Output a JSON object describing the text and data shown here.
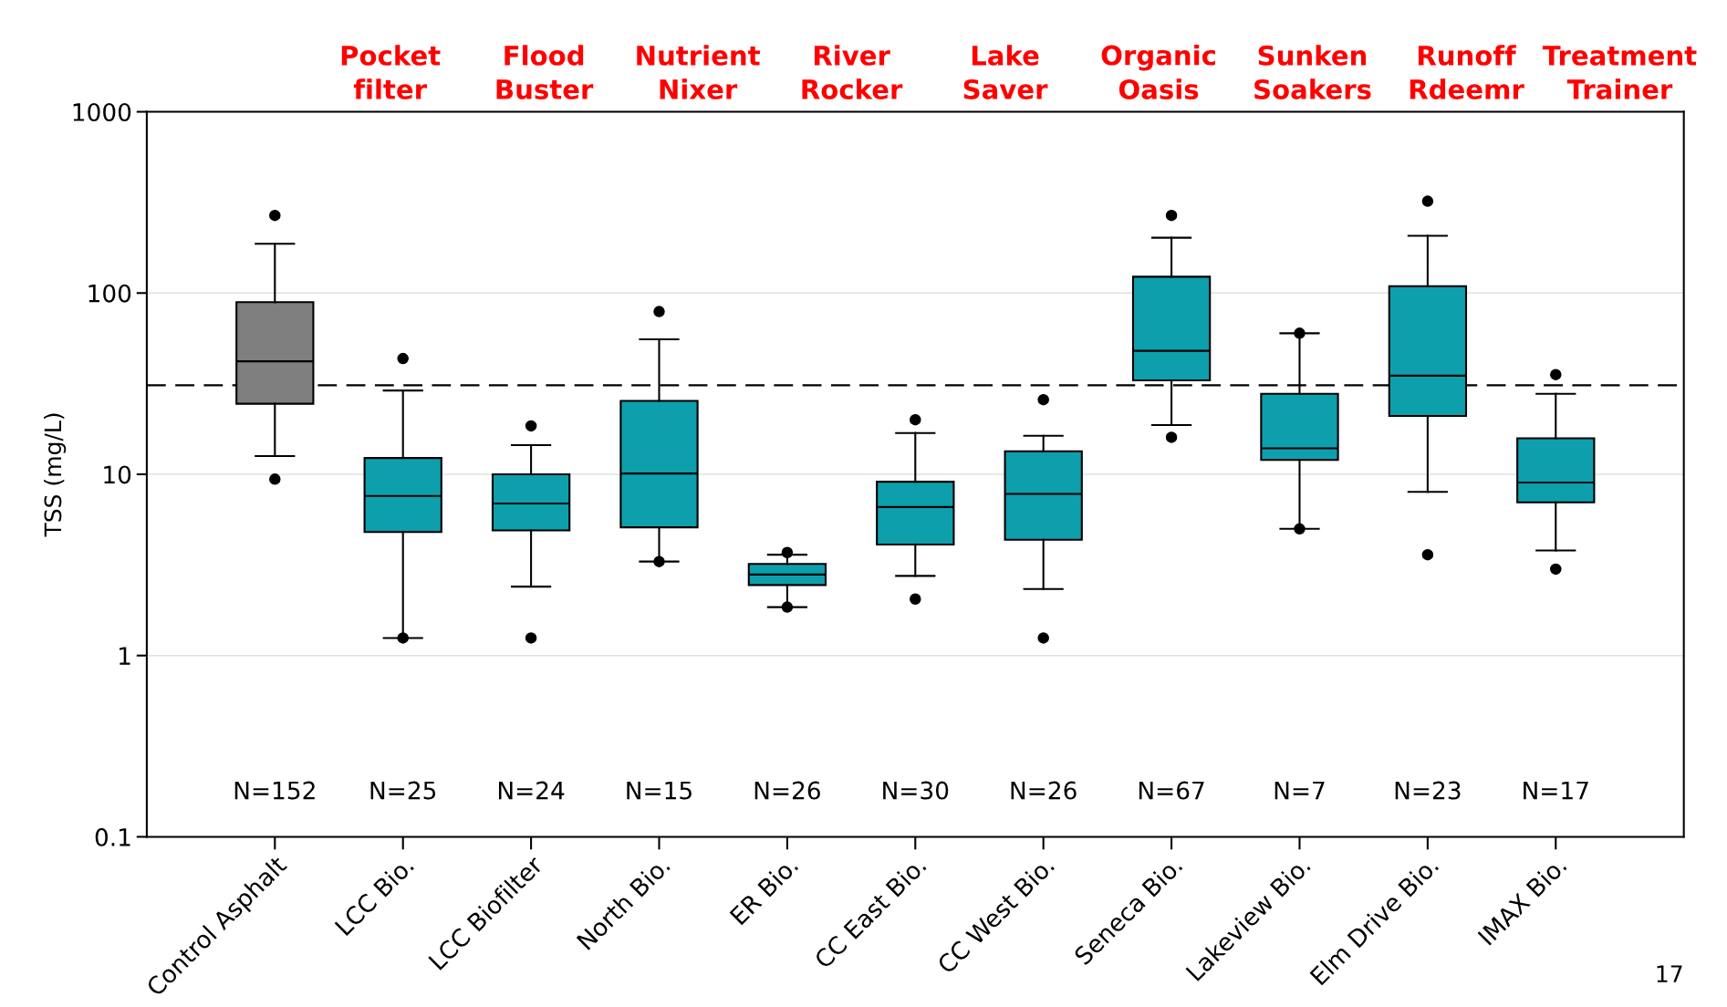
{
  "chart_data": {
    "type": "box",
    "ylabel": "TSS (mg/L)",
    "categories": [
      "Control Asphalt",
      "LCC Bio.",
      "LCC Biofilter",
      "North Bio.",
      "ER Bio.",
      "CC East Bio.",
      "CC West Bio.",
      "Seneca Bio.",
      "Lakeview Bio.",
      "Elm Drive Bio.",
      "IMAX Bio."
    ],
    "colors": [
      "#7f7f7f",
      "#0e9fad",
      "#0e9fad",
      "#0e9fad",
      "#0e9fad",
      "#0e9fad",
      "#0e9fad",
      "#0e9fad",
      "#0e9fad",
      "#0e9fad",
      "#0e9fad"
    ],
    "boxes": [
      {
        "low": 12.6,
        "q1": 24.5,
        "median": 42,
        "q3": 89,
        "high": 187,
        "outliers": [
          268,
          9.4
        ]
      },
      {
        "low": 1.25,
        "q1": 4.8,
        "median": 7.6,
        "q3": 12.3,
        "high": 29,
        "outliers": [
          43.5,
          1.25
        ]
      },
      {
        "low": 2.4,
        "q1": 4.9,
        "median": 6.9,
        "q3": 10,
        "high": 14.5,
        "outliers": [
          18.5,
          1.25
        ]
      },
      {
        "low": 3.3,
        "q1": 5.1,
        "median": 10.1,
        "q3": 25.4,
        "high": 55.5,
        "outliers": [
          79,
          3.3
        ]
      },
      {
        "low": 1.85,
        "q1": 2.45,
        "median": 2.8,
        "q3": 3.2,
        "high": 3.6,
        "outliers": [
          3.7,
          1.85
        ]
      },
      {
        "low": 2.75,
        "q1": 4.1,
        "median": 6.6,
        "q3": 9.1,
        "high": 16.9,
        "outliers": [
          20,
          2.05
        ]
      },
      {
        "low": 2.33,
        "q1": 4.35,
        "median": 7.8,
        "q3": 13.4,
        "high": 16.3,
        "outliers": [
          25.8,
          1.25
        ]
      },
      {
        "low": 18.7,
        "q1": 33,
        "median": 48,
        "q3": 123,
        "high": 202,
        "outliers": [
          268,
          16
        ]
      },
      {
        "low": 5,
        "q1": 12,
        "median": 13.9,
        "q3": 27.8,
        "high": 60,
        "outliers": [
          60,
          5
        ]
      },
      {
        "low": 8,
        "q1": 21,
        "median": 35,
        "q3": 109,
        "high": 207,
        "outliers": [
          321,
          3.6
        ]
      },
      {
        "low": 3.8,
        "q1": 7,
        "median": 9,
        "q3": 15.8,
        "high": 27.8,
        "outliers": [
          35.5,
          3
        ]
      }
    ],
    "log": "y",
    "ylim": [
      0.1,
      1000
    ],
    "yticks": [
      0.1,
      1,
      10,
      100,
      1000
    ],
    "grid": "y",
    "ref_lines": [
      {
        "axis": "y",
        "value": 31,
        "line_style": "dashed",
        "color": "#000000"
      }
    ],
    "annotations": [
      "N=152",
      "N=25",
      "N=24",
      "N=15",
      "N=26",
      "N=30",
      "N=26",
      "N=67",
      "N=7",
      "N=23",
      "N=17",
      "Pocket\nfilter",
      "Flood\nBuster",
      "Nutrient\nNixer",
      "River\nRocker",
      "Lake\nSaver",
      "Organic\nOasis",
      "Sunken\nSoakers",
      "Runoff\nRdeemr",
      "Treatment\nTrainer",
      "17"
    ]
  }
}
